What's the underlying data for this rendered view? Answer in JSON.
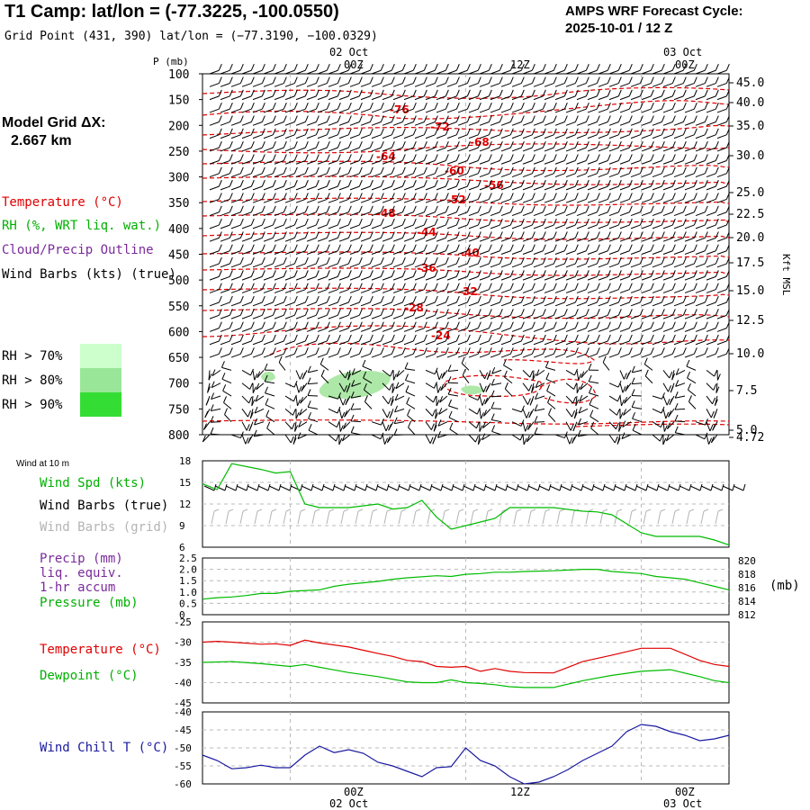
{
  "header": {
    "title": "T1 Camp:  lat/lon = (-77.3225, -100.0550)",
    "grid_point": "Grid Point (431, 390) lat/lon = (−77.3190, −100.0329)",
    "forecast_label": "AMPS WRF Forecast Cycle:",
    "forecast_cycle": "2025-10-01 / 12  Z"
  },
  "time_axis": {
    "top_dates": [
      "02 Oct",
      "03 Oct"
    ],
    "top_hours": [
      "00Z",
      "12Z",
      "00Z"
    ],
    "bottom_hours": [
      "00Z",
      "12Z",
      "00Z"
    ],
    "bottom_dates": [
      "02 Oct",
      "03 Oct"
    ]
  },
  "left_panel": {
    "model_grid_label": "Model Grid ΔX:",
    "model_grid_value": "2.667 km",
    "legend": {
      "temperature": "Temperature (°C)",
      "rh": "RH (%, WRT liq. wat.)",
      "cloud": "Cloud/Precip Outline",
      "wind": "Wind Barbs (kts) (true)"
    },
    "rh_legend": [
      "RH > 70%",
      "RH > 80%",
      "RH > 90%"
    ],
    "rh_colors": [
      "#ccffcc",
      "#99e699",
      "#33dd33"
    ]
  },
  "chart_data": [
    {
      "type": "contour",
      "name": "cross-section",
      "yaxis_title": "P (mb)",
      "pressure_ticks": [
        "100",
        "150",
        "200",
        "250",
        "300",
        "350",
        "400",
        "450",
        "500",
        "550",
        "600",
        "650",
        "700",
        "750",
        "800"
      ],
      "right_axis_title": "Kft MSL",
      "height_ticks": [
        "45.0",
        "40.0",
        "35.0",
        "30.0",
        "25.0",
        "22.5",
        "20.0",
        "17.5",
        "15.0",
        "12.5",
        "10.0",
        "7.5",
        "5.0",
        "4.72"
      ],
      "temperature_contours": [
        "-76",
        "-72",
        "-68",
        "-64",
        "-60",
        "-56",
        "-52",
        "-48",
        "-44",
        "-40",
        "-36",
        "-32",
        "-28",
        "-24"
      ],
      "colors": {
        "temperature": "#e00000",
        "wind": "#000000",
        "rh": "#aee8a8"
      }
    },
    {
      "type": "line",
      "name": "wind",
      "section_title": "Wind at 10 m",
      "labels": {
        "speed": "Wind Spd (kts)",
        "barbs_true": "Wind Barbs (true)",
        "barbs_grid": "Wind Barbs (grid)"
      },
      "yticks": [
        "18",
        "15",
        "12",
        "9",
        "6"
      ],
      "ylim": [
        6,
        18
      ],
      "xlim": [
        0,
        36
      ],
      "series": [
        {
          "name": "Wind Spd (kts)",
          "color": "#00bb00",
          "x": [
            0,
            1,
            2,
            4,
            5,
            6,
            7,
            8,
            10,
            12,
            13,
            14,
            15,
            16,
            17,
            19,
            20,
            21,
            22,
            24,
            26,
            27,
            28,
            30,
            31,
            32,
            33,
            34,
            35,
            36
          ],
          "values": [
            14.8,
            14,
            17.6,
            16.8,
            16.3,
            16.5,
            12,
            11.5,
            11.5,
            12,
            11.3,
            11.5,
            12.5,
            10.2,
            8.5,
            9.5,
            10,
            11.5,
            11.5,
            11.5,
            11,
            10.9,
            10.5,
            8,
            7.5,
            7.5,
            7.5,
            7.5,
            7,
            6.3
          ]
        }
      ]
    },
    {
      "type": "line",
      "name": "precip-pressure",
      "labels": {
        "precip": "Precip (mm)",
        "liq": "liq. equiv.",
        "accum": "1-hr accum",
        "pressure": "Pressure (mb)"
      },
      "yticks_left": [
        "2.5",
        "2.0",
        "1.5",
        "1.0",
        "0.5",
        "0"
      ],
      "yticks_right": [
        "820",
        "818",
        "816",
        "814",
        "812"
      ],
      "right_unit": "(mb)",
      "ylim_left": [
        0,
        2.5
      ],
      "ylim_right": [
        812,
        820
      ],
      "xlim": [
        0,
        36
      ],
      "series": [
        {
          "name": "Pressure (mb)",
          "color": "#00bb00",
          "x": [
            0,
            1,
            2,
            3,
            4,
            5,
            6,
            8,
            9,
            10,
            12,
            13,
            14,
            16,
            17,
            18,
            19,
            20,
            21,
            22,
            24,
            25,
            26,
            27,
            28,
            30,
            31,
            32,
            33,
            34,
            35,
            36
          ],
          "values": [
            814.2,
            814.4,
            814.5,
            814.7,
            815.0,
            815.0,
            815.3,
            815.5,
            816.0,
            816.3,
            816.7,
            817.0,
            817.2,
            817.5,
            817.4,
            817.7,
            817.8,
            818.0,
            818.0,
            818.1,
            818.2,
            818.3,
            818.4,
            818.4,
            818.1,
            817.8,
            817.4,
            817.2,
            817.0,
            816.5,
            816.0,
            815.5
          ]
        }
      ]
    },
    {
      "type": "line",
      "name": "temperature-dewpoint",
      "labels": {
        "temperature": "Temperature (°C)",
        "dewpoint": "Dewpoint (°C)"
      },
      "yticks": [
        "-25",
        "-30",
        "-35",
        "-40",
        "-45"
      ],
      "ylim": [
        -45,
        -25
      ],
      "xlim": [
        0,
        36
      ],
      "series": [
        {
          "name": "Temperature (°C)",
          "color": "#e00000",
          "x": [
            0,
            1,
            2,
            4,
            5,
            6,
            7,
            8,
            10,
            11,
            12,
            13,
            14,
            15,
            16,
            17,
            18,
            19,
            20,
            21,
            22,
            24,
            25,
            26,
            28,
            30,
            32,
            34,
            35,
            36
          ],
          "values": [
            -30,
            -29.8,
            -30,
            -30.5,
            -30.4,
            -30.8,
            -29.5,
            -30.2,
            -31.2,
            -32,
            -32.8,
            -33.5,
            -34.5,
            -34.8,
            -36,
            -36.2,
            -36,
            -37.2,
            -36.5,
            -37.2,
            -37.5,
            -37.6,
            -36.2,
            -34.8,
            -33.2,
            -31.5,
            -31.5,
            -34.5,
            -35.5,
            -36
          ]
        },
        {
          "name": "Dewpoint (°C)",
          "color": "#00bb00",
          "x": [
            0,
            2,
            4,
            6,
            7,
            8,
            10,
            12,
            14,
            15,
            16,
            17,
            18,
            19,
            20,
            21,
            22,
            24,
            26,
            28,
            30,
            32,
            34,
            35,
            36
          ],
          "values": [
            -35,
            -34.8,
            -35.3,
            -36,
            -35.5,
            -36.2,
            -37.5,
            -38.5,
            -39.8,
            -40,
            -40,
            -39.3,
            -40,
            -40.2,
            -40.5,
            -41,
            -41.2,
            -41.2,
            -39.5,
            -38.2,
            -37.2,
            -36.8,
            -38.5,
            -39.5,
            -40
          ]
        }
      ]
    },
    {
      "type": "line",
      "name": "wind-chill",
      "labels": {
        "wind_chill": "Wind Chill T (°C)"
      },
      "yticks": [
        "-40",
        "-45",
        "-50",
        "-55",
        "-60"
      ],
      "ylim": [
        -60,
        -40
      ],
      "xlim": [
        0,
        36
      ],
      "series": [
        {
          "name": "Wind Chill T (°C)",
          "color": "#1a1aa0",
          "x": [
            0,
            1,
            2,
            3,
            4,
            5,
            6,
            7,
            8,
            9,
            10,
            11,
            12,
            13,
            14,
            15,
            16,
            17,
            18,
            19,
            20,
            21,
            22,
            23,
            24,
            25,
            26,
            27,
            28,
            29,
            30,
            31,
            32,
            33,
            34,
            35,
            36
          ],
          "values": [
            -52,
            -53.5,
            -55.8,
            -55.5,
            -54.8,
            -55.5,
            -55.5,
            -52,
            -49.5,
            -51.3,
            -50.5,
            -51.5,
            -54,
            -55,
            -56.5,
            -58,
            -55.5,
            -55.2,
            -50,
            -53.5,
            -55,
            -58,
            -60,
            -59.5,
            -58,
            -56,
            -53.5,
            -51.5,
            -49.5,
            -45.5,
            -43.5,
            -44,
            -45.5,
            -46.5,
            -48,
            -47.5,
            -46.5
          ]
        }
      ]
    }
  ]
}
